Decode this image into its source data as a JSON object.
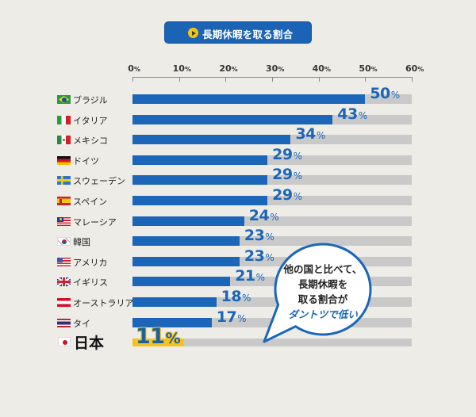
{
  "header": {
    "title": "長期休暇を取る割合",
    "icon": "play-circle-icon"
  },
  "colors": {
    "background": "#eeece7",
    "bar": "#1b66b8",
    "track": "#c9c9c9",
    "highlight": "#f5c41c",
    "header": "#1b63b4"
  },
  "chart_data": {
    "type": "bar",
    "orientation": "horizontal",
    "title": "長期休暇を取る割合",
    "xlabel": "",
    "ylabel": "",
    "xlim": [
      0,
      60
    ],
    "xticks": [
      0,
      10,
      20,
      30,
      40,
      50,
      60
    ],
    "xtick_labels": [
      "0",
      "10",
      "20",
      "30",
      "40",
      "50",
      "60"
    ],
    "unit": "%",
    "grid": false,
    "legend": null,
    "categories": [
      "ブラジル",
      "イタリア",
      "メキシコ",
      "ドイツ",
      "スウェーデン",
      "スペイン",
      "マレーシア",
      "韓国",
      "アメリカ",
      "イギリス",
      "オーストラリア",
      "タイ",
      "日本"
    ],
    "flags": [
      "flag-brazil",
      "flag-italy",
      "flag-mexico",
      "flag-germany",
      "flag-sweden",
      "flag-spain",
      "flag-malaysia",
      "flag-korea",
      "flag-usa",
      "flag-uk",
      "flag-austria",
      "flag-thailand",
      "flag-japan"
    ],
    "values": [
      50,
      43,
      34,
      29,
      29,
      29,
      24,
      23,
      23,
      21,
      18,
      17,
      11
    ],
    "highlight_index": 12,
    "annotations": [
      {
        "text": "他の国と比べて、長期休暇を取る割合がダントツで低い",
        "target": "日本"
      }
    ]
  },
  "callout": {
    "lines": [
      "他の国と比べて、",
      "長期休暇を",
      "取る割合が",
      "ダントツで低い"
    ]
  }
}
